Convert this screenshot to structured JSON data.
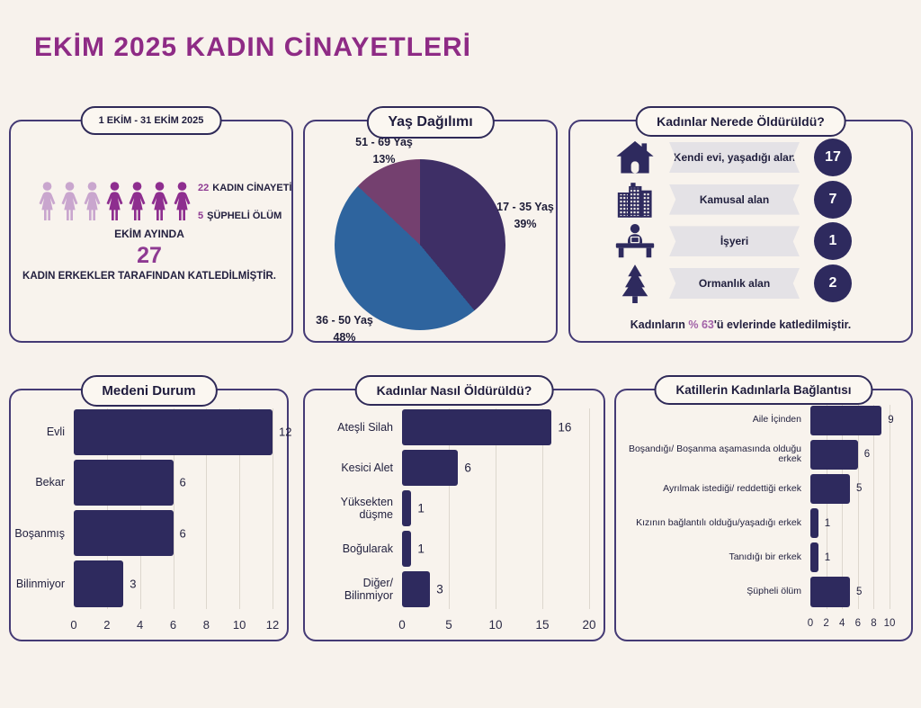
{
  "page": {
    "title": "EKİM 2025 KADIN CİNAYETLERİ"
  },
  "colors": {
    "page_bg": "#f7f2ec",
    "panel_border": "#443a75",
    "accent_magenta": "#8e2b85",
    "navy": "#2e2a5e",
    "figure_light": "#c9a6ce",
    "figure_dark": "#8e2e8f",
    "stat_purple": "#8e3a92",
    "banner_gray": "#e4e2e6",
    "footer_highlight": "#a263a8",
    "gridline": "#ddd7ce"
  },
  "summary": {
    "badge": "1 EKİM - 31 EKİM 2025",
    "victim_figures": {
      "light_count": 3,
      "dark_count": 4
    },
    "stats": [
      {
        "value": "22",
        "label": "KADIN CİNAYETİ"
      },
      {
        "value": "5",
        "label": "ŞÜPHELİ ÖLÜM"
      }
    ],
    "month_label": "EKİM AYINDA",
    "total": "27",
    "note": "KADIN ERKEKLER TARAFINDAN KATLEDİLMİŞTİR."
  },
  "location": {
    "title": "Kadınlar Nerede Öldürüldü?",
    "rows": [
      {
        "icon": "house-icon",
        "label": "Kendi evi, yaşadığı alan",
        "value": "17"
      },
      {
        "icon": "buildings-icon",
        "label": "Kamusal alan",
        "value": "7"
      },
      {
        "icon": "desk-icon",
        "label": "İşyeri",
        "value": "1"
      },
      {
        "icon": "pine-tree-icon",
        "label": "Ormanlık alan",
        "value": "2"
      }
    ],
    "footer": {
      "prefix": "Kadınların ",
      "highlight": "% 63",
      "suffix": "'ü evlerinde katledilmiştir."
    }
  },
  "chart_data": [
    {
      "type": "pie",
      "title": "Yaş Dağılımı",
      "start": "12 o'clock, clockwise",
      "slices": [
        {
          "label": "17 - 35 Yaş",
          "pct": 39,
          "pct_label": "39%",
          "color": "#3e2f66"
        },
        {
          "label": "36 - 50 Yaş",
          "pct": 48,
          "pct_label": "48%",
          "color": "#2e649e"
        },
        {
          "label": "51 - 69 Yaş",
          "pct": 13,
          "pct_label": "13%",
          "color": "#74406f"
        }
      ]
    },
    {
      "type": "bar",
      "orientation": "horizontal",
      "title": "Medeni Durum",
      "categories": [
        "Evli",
        "Bekar",
        "Boşanmış",
        "Bilinmiyor"
      ],
      "values": [
        12,
        6,
        6,
        3
      ],
      "xlim": [
        0,
        12
      ],
      "ticks": [
        0,
        2,
        4,
        6,
        8,
        10,
        12
      ],
      "bar_color": "#2e2a5e",
      "grid": true
    },
    {
      "type": "bar",
      "orientation": "horizontal",
      "title": "Kadınlar Nasıl Öldürüldü?",
      "categories": [
        "Ateşli Silah",
        "Kesici Alet",
        "Yüksekten düşme",
        "Boğularak",
        "Diğer/ Bilinmiyor"
      ],
      "values": [
        16,
        6,
        1,
        1,
        3
      ],
      "xlim": [
        0,
        20
      ],
      "ticks": [
        0,
        5,
        10,
        15,
        20
      ],
      "bar_color": "#2e2a5e",
      "grid": true
    },
    {
      "type": "bar",
      "orientation": "horizontal",
      "title": "Katillerin Kadınlarla Bağlantısı",
      "categories": [
        "Aile İçinden",
        "Boşandığı/ Boşanma aşamasında olduğu erkek",
        "Ayrılmak istediği/ reddettiği erkek",
        "Kızının bağlantılı olduğu/yaşadığı erkek",
        "Tanıdığı bir erkek",
        "Şüpheli ölüm"
      ],
      "values": [
        9,
        6,
        5,
        1,
        1,
        5
      ],
      "xlim": [
        0,
        10
      ],
      "ticks": [
        0,
        2,
        4,
        6,
        8,
        10
      ],
      "bar_color": "#2e2a5e",
      "grid": true
    }
  ]
}
